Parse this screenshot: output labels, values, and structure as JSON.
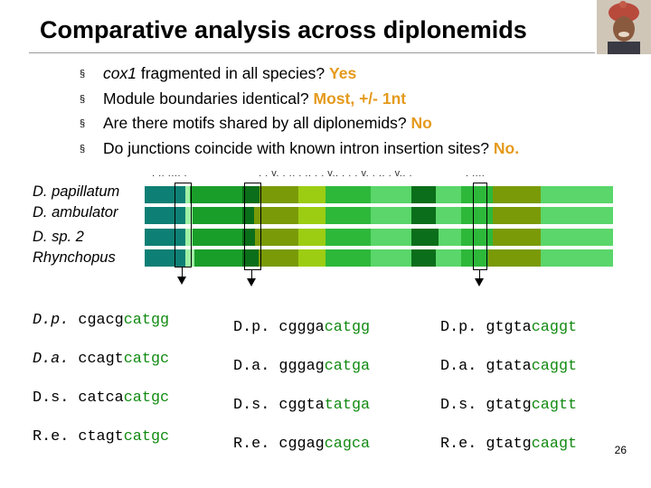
{
  "title": "Comparative analysis across diplonemids",
  "bullets": [
    {
      "pre_italic": "cox1",
      "text": " fragmented in all species? ",
      "answer": "Yes"
    },
    {
      "pre_italic": "",
      "text": "Module boundaries identical? ",
      "answer": "Most, +/- 1nt"
    },
    {
      "pre_italic": "",
      "text": "Are there motifs shared by all diplonemids? ",
      "answer": "No"
    },
    {
      "pre_italic": "",
      "text": "Do junctions coincide with known intron insertion sites? ",
      "answer": "No."
    }
  ],
  "bullet_marker": "§",
  "conservation_marks": [
    ". .. .... .",
    ". . v. . .. . .. . . v.. . . . v. . .. . v.. .",
    ". ...."
  ],
  "species": [
    "D. papillatum",
    "D. ambulator",
    "D. sp. 2",
    "Rhynchopus"
  ],
  "colors": {
    "dark_teal": "#0e7f74",
    "dark_green": "#0b6e1a",
    "green": "#1a9e2a",
    "olive": "#7a9a08",
    "yellow_green": "#9ccd13",
    "mid_green": "#2db83a",
    "bright_green": "#5ad66a",
    "light_green": "#9ef0a4",
    "answer_orange": "#e59a1b",
    "highlight_green": "#118a11"
  },
  "alignments": [
    {
      "labels": [
        "D.p.",
        "D.a.",
        "D.s.",
        "R.e."
      ],
      "rows": [
        {
          "pre": "cgacg",
          "hl": "catgg",
          "post": ""
        },
        {
          "pre": "ccagt",
          "hl": "catgc",
          "post": ""
        },
        {
          "pre": "catca",
          "hl": "catgc",
          "post": ""
        },
        {
          "pre": "ctagt",
          "hl": "catgc",
          "post": ""
        }
      ]
    },
    {
      "labels": [
        "D.p.",
        "D.a.",
        "D.s.",
        "R.e."
      ],
      "rows": [
        {
          "pre": "cggga",
          "hl": "catgg",
          "post": ""
        },
        {
          "pre": "gggag",
          "hl": "catga",
          "post": ""
        },
        {
          "pre": "cggta",
          "hl": "tatga",
          "post": ""
        },
        {
          "pre": "cggag",
          "hl": "cagca",
          "post": ""
        }
      ]
    },
    {
      "labels": [
        "D.p.",
        "D.a.",
        "D.s.",
        "R.e."
      ],
      "rows": [
        {
          "pre": "gtgta",
          "hl": "caggt",
          "post": ""
        },
        {
          "pre": "gtata",
          "hl": "caggt",
          "post": ""
        },
        {
          "pre": "gtatg",
          "hl": "cagtt",
          "post": ""
        },
        {
          "pre": "gtatg",
          "hl": "caagt",
          "post": ""
        }
      ]
    }
  ],
  "page_number": "26"
}
